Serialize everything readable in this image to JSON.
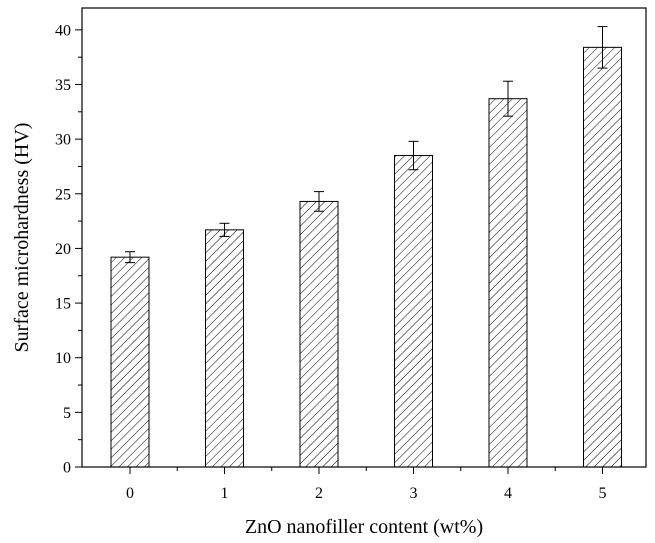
{
  "chart_data": {
    "type": "bar",
    "title": "",
    "xlabel": "ZnO nanofiller content (wt%)",
    "ylabel": "Surface microhardness (HV)",
    "categories": [
      "0",
      "1",
      "2",
      "3",
      "4",
      "5"
    ],
    "values": [
      19.2,
      21.7,
      24.3,
      28.5,
      33.7,
      38.4
    ],
    "errors": [
      0.5,
      0.6,
      0.9,
      1.3,
      1.6,
      1.9
    ],
    "ylim": [
      0,
      42
    ],
    "yticks": [
      0,
      5,
      10,
      15,
      20,
      25,
      30,
      35,
      40
    ],
    "grid": false,
    "legend": "none",
    "bar_fill": "diagonal-hatch",
    "colors": {
      "stroke": "#000000",
      "fill": "#ffffff"
    }
  }
}
